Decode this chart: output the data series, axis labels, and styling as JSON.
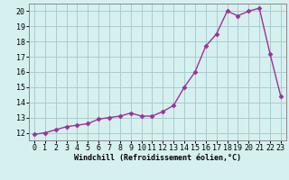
{
  "x": [
    0,
    1,
    2,
    3,
    4,
    5,
    6,
    7,
    8,
    9,
    10,
    11,
    12,
    13,
    14,
    15,
    16,
    17,
    18,
    19,
    20,
    21,
    22,
    23
  ],
  "y": [
    11.9,
    12.0,
    12.2,
    12.4,
    12.5,
    12.6,
    12.9,
    13.0,
    13.1,
    13.3,
    13.1,
    13.1,
    13.4,
    13.8,
    15.0,
    16.0,
    17.7,
    18.5,
    20.0,
    19.7,
    20.0,
    20.2,
    17.2,
    14.4
  ],
  "line_color": "#993399",
  "marker": "D",
  "marker_size": 2.5,
  "bg_color": "#d6f0f0",
  "grid_color": "#aacccc",
  "xlabel": "Windchill (Refroidissement éolien,°C)",
  "xlim": [
    -0.5,
    23.5
  ],
  "ylim": [
    11.5,
    20.5
  ],
  "yticks": [
    12,
    13,
    14,
    15,
    16,
    17,
    18,
    19,
    20
  ],
  "xticks": [
    0,
    1,
    2,
    3,
    4,
    5,
    6,
    7,
    8,
    9,
    10,
    11,
    12,
    13,
    14,
    15,
    16,
    17,
    18,
    19,
    20,
    21,
    22,
    23
  ],
  "xlabel_fontsize": 6.0,
  "tick_fontsize": 6.0,
  "linewidth": 1.0
}
